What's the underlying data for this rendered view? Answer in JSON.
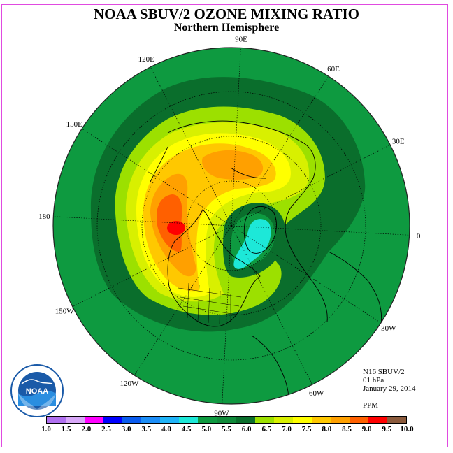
{
  "title": "NOAA SBUV/2 OZONE MIXING RATIO",
  "subtitle": "Northern Hemisphere",
  "info": {
    "satellite": "N16 SBUV/2",
    "level": "01 hPa",
    "date": "January 29, 2014",
    "unit": "PPM"
  },
  "logo": {
    "text": "NOAA"
  },
  "longitude_labels": [
    "90E",
    "60E",
    "30E",
    "0",
    "30W",
    "60W",
    "90W",
    "120W",
    "150W",
    "180",
    "150E",
    "120E"
  ],
  "colorbar": {
    "ticks": [
      "1.0",
      "1.5",
      "2.0",
      "2.5",
      "3.0",
      "3.5",
      "4.0",
      "4.5",
      "5.0",
      "5.5",
      "6.0",
      "6.5",
      "7.0",
      "7.5",
      "8.0",
      "8.5",
      "9.0",
      "9.5",
      "10.0"
    ],
    "colors": [
      "#b070f0",
      "#d8a8f8",
      "#ff00ff",
      "#0000ff",
      "#0a5cf0",
      "#1c8ef8",
      "#20b4f8",
      "#1de8d8",
      "#0e9a40",
      "#108a3a",
      "#0a6e2c",
      "#9ce000",
      "#d8f000",
      "#ffff00",
      "#ffc800",
      "#ffa000",
      "#ff6000",
      "#ff0000",
      "#8b5a3c"
    ]
  },
  "map_colors": {
    "ring": "#0e9a40",
    "dark_green": "#0a6e2c",
    "light_green": "#9ce000",
    "yellow_green": "#d8f000",
    "yellow": "#ffff00",
    "gold": "#ffc800",
    "orange": "#ffa000",
    "dark_orange": "#ff6000",
    "red": "#ff0000",
    "cyan": "#1de8d8",
    "land_outline": "#000000",
    "graticule": "#000000"
  }
}
